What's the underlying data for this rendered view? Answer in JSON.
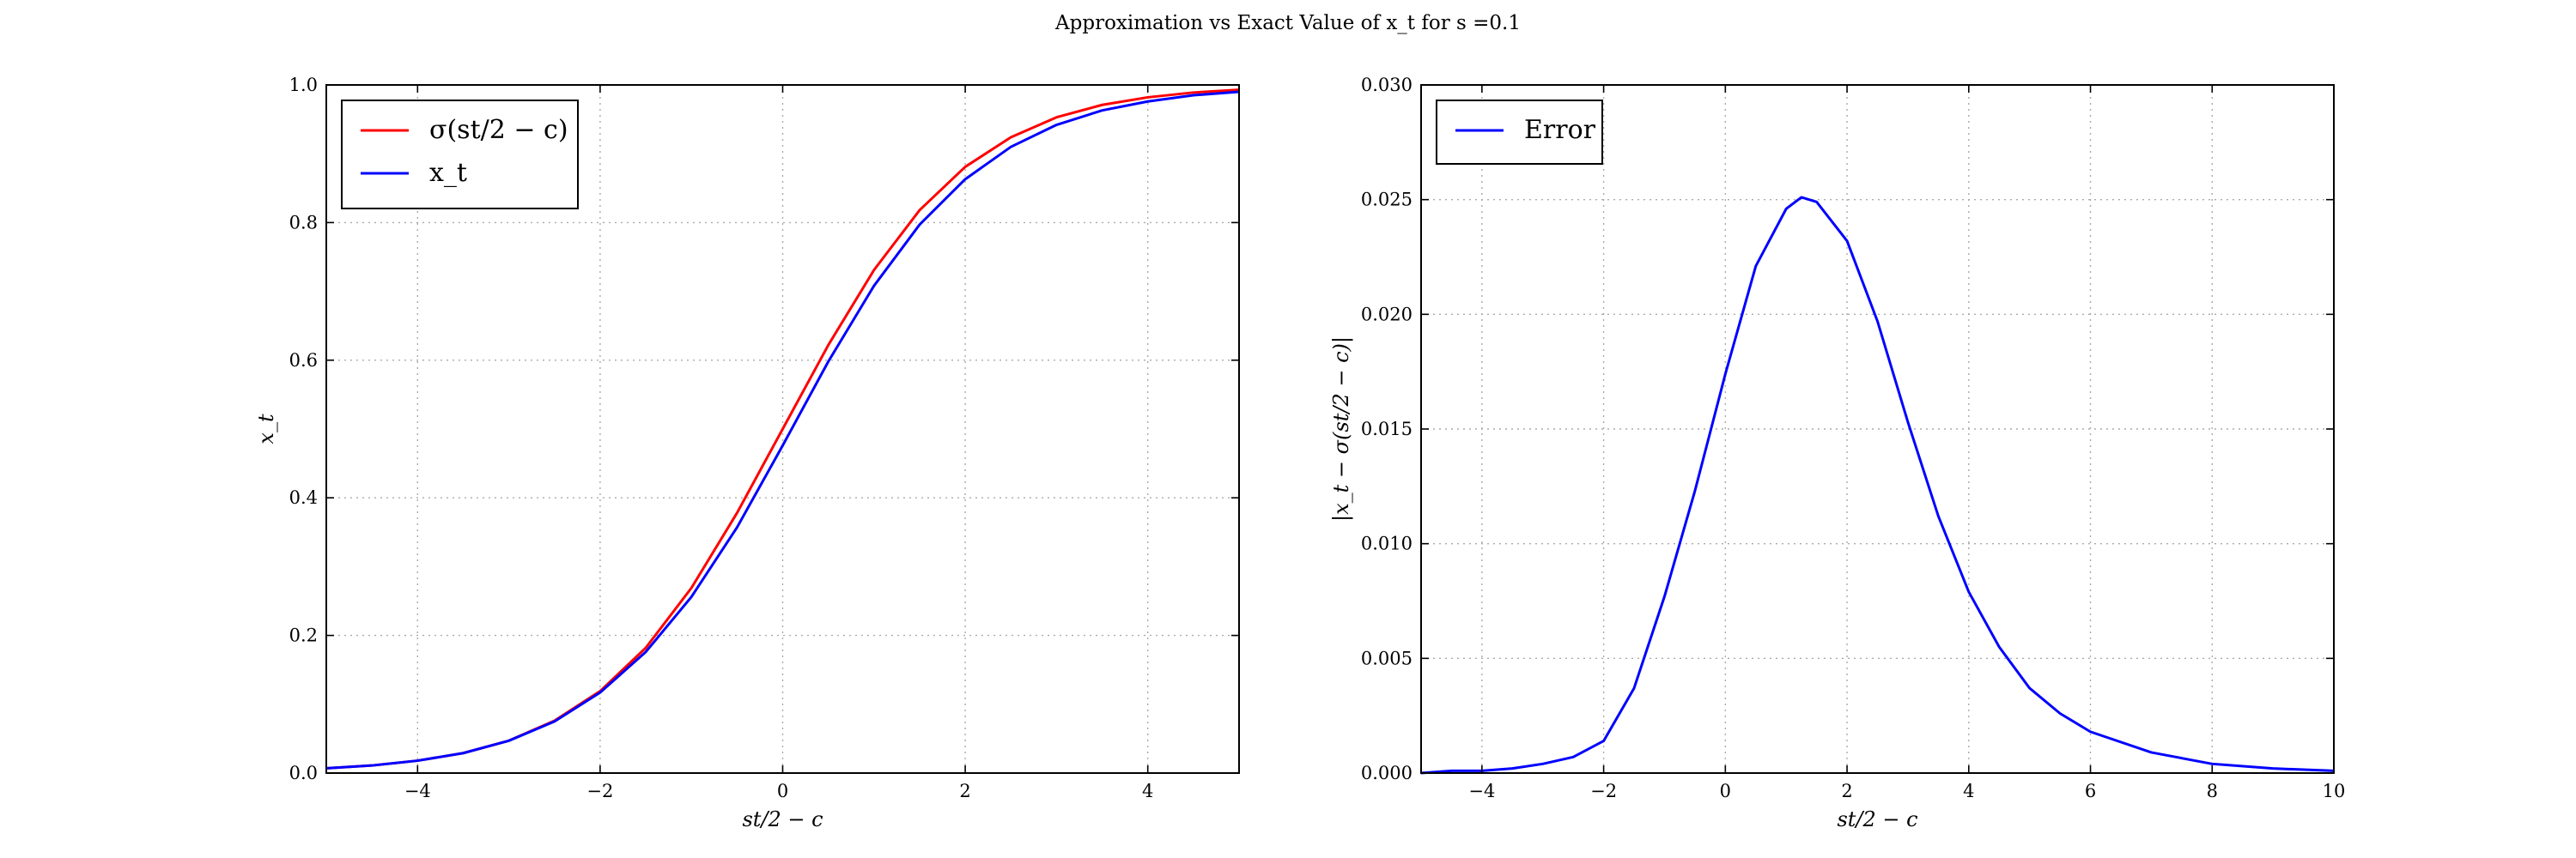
{
  "figure": {
    "suptitle": "Approximation vs Exact Value of x_t for s =0.1"
  },
  "chart_data": [
    {
      "type": "line",
      "title": "",
      "xlabel": "st/2 − c",
      "ylabel": "x_t",
      "xlim": [
        -5,
        5
      ],
      "ylim": [
        0,
        1.0
      ],
      "xticks": [
        -4,
        -2,
        0,
        2,
        4
      ],
      "xtick_labels": [
        "−4",
        "−2",
        "0",
        "2",
        "4"
      ],
      "yticks": [
        0,
        0.2,
        0.4,
        0.6,
        0.8,
        1.0
      ],
      "ytick_labels": [
        "0.0",
        "0.2",
        "0.4",
        "0.6",
        "0.8",
        "1.0"
      ],
      "grid": true,
      "legend_position": "top-left",
      "series": [
        {
          "name": "σ(st/2 − c)",
          "color": "#ff0000",
          "x": [
            -5,
            -4.5,
            -4,
            -3.5,
            -3,
            -2.5,
            -2,
            -1.5,
            -1,
            -0.5,
            0,
            0.5,
            1,
            1.5,
            2,
            2.5,
            3,
            3.5,
            4,
            4.5,
            5
          ],
          "y": [
            0.007,
            0.011,
            0.018,
            0.029,
            0.047,
            0.076,
            0.119,
            0.182,
            0.269,
            0.378,
            0.5,
            0.622,
            0.731,
            0.818,
            0.881,
            0.924,
            0.953,
            0.971,
            0.982,
            0.989,
            0.993
          ]
        },
        {
          "name": "x_t",
          "color": "#0000ff",
          "x": [
            -5,
            -4.5,
            -4,
            -3.5,
            -3,
            -2.5,
            -2,
            -1.5,
            -1,
            -0.5,
            0,
            0.5,
            1,
            1.5,
            2,
            2.5,
            3,
            3.5,
            4,
            4.5,
            5
          ],
          "y": [
            0.007,
            0.011,
            0.018,
            0.029,
            0.047,
            0.075,
            0.117,
            0.176,
            0.256,
            0.357,
            0.476,
            0.598,
            0.708,
            0.797,
            0.863,
            0.91,
            0.942,
            0.963,
            0.976,
            0.985,
            0.99
          ]
        }
      ]
    },
    {
      "type": "line",
      "title": "",
      "xlabel": "st/2 − c",
      "ylabel": "|x_t − σ(st/2 − c)|",
      "xlim": [
        -5,
        10
      ],
      "ylim": [
        0,
        0.03
      ],
      "xticks": [
        -4,
        -2,
        0,
        2,
        4,
        6,
        8,
        10
      ],
      "xtick_labels": [
        "−4",
        "−2",
        "0",
        "2",
        "4",
        "6",
        "8",
        "10"
      ],
      "yticks": [
        0,
        0.005,
        0.01,
        0.015,
        0.02,
        0.025,
        0.03
      ],
      "ytick_labels": [
        "0.000",
        "0.005",
        "0.010",
        "0.015",
        "0.020",
        "0.025",
        "0.030"
      ],
      "grid": true,
      "legend_position": "top-left",
      "series": [
        {
          "name": "Error",
          "color": "#0000ff",
          "x": [
            -5,
            -4.5,
            -4,
            -3.5,
            -3,
            -2.5,
            -2,
            -1.5,
            -1,
            -0.5,
            0,
            0.5,
            1,
            1.25,
            1.5,
            2,
            2.5,
            3,
            3.5,
            4,
            4.5,
            5,
            5.5,
            6,
            7,
            8,
            9,
            10
          ],
          "y": [
            0.0,
            0.0001,
            0.0001,
            0.0002,
            0.0004,
            0.0007,
            0.0014,
            0.0037,
            0.0077,
            0.0123,
            0.0174,
            0.0221,
            0.0246,
            0.0251,
            0.0249,
            0.0232,
            0.0197,
            0.0153,
            0.0112,
            0.0079,
            0.0055,
            0.0037,
            0.0026,
            0.0018,
            0.0009,
            0.0004,
            0.0002,
            0.0001
          ]
        }
      ]
    }
  ]
}
